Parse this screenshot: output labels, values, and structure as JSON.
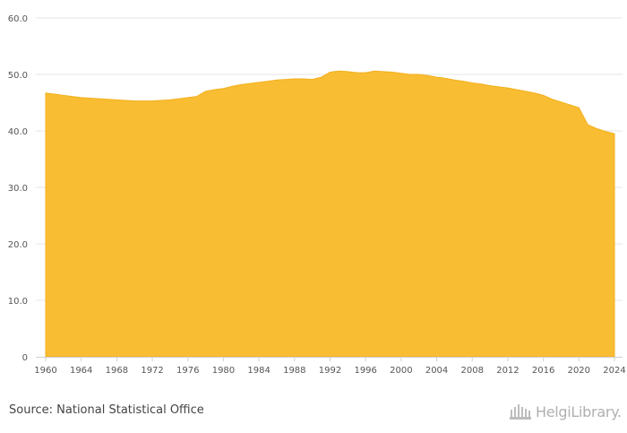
{
  "source_text": "Source: National Statistical Office",
  "brand": {
    "name": "HelgiLibrary.",
    "icon": "library-building-logo"
  },
  "colors": {
    "area": "#f9bd33",
    "area_stroke": "#f2b01c",
    "grid": "#e6e6e6",
    "tick_text": "#555555"
  },
  "chart_data": {
    "type": "area",
    "title": "",
    "xlabel": "",
    "ylabel": "",
    "ylim": [
      0,
      60
    ],
    "y_ticks": [
      "0",
      "10.0",
      "20.0",
      "30.0",
      "40.0",
      "50.0",
      "60.0"
    ],
    "x_ticks": [
      "1960",
      "1964",
      "1968",
      "1972",
      "1976",
      "1980",
      "1984",
      "1988",
      "1992",
      "1996",
      "2000",
      "2004",
      "2008",
      "2012",
      "2016",
      "2020",
      "2024"
    ],
    "grid": true,
    "legend": "none",
    "x": [
      1960,
      1961,
      1962,
      1963,
      1964,
      1965,
      1966,
      1967,
      1968,
      1969,
      1970,
      1971,
      1972,
      1973,
      1974,
      1975,
      1976,
      1977,
      1978,
      1979,
      1980,
      1981,
      1982,
      1983,
      1984,
      1985,
      1986,
      1987,
      1988,
      1989,
      1990,
      1991,
      1992,
      1993,
      1994,
      1995,
      1996,
      1997,
      1998,
      1999,
      2000,
      2001,
      2002,
      2003,
      2004,
      2005,
      2006,
      2007,
      2008,
      2009,
      2010,
      2011,
      2012,
      2013,
      2014,
      2015,
      2016,
      2017,
      2018,
      2019,
      2020,
      2021,
      2022,
      2023,
      2024
    ],
    "values": [
      46.7,
      46.5,
      46.3,
      46.1,
      45.9,
      45.8,
      45.7,
      45.6,
      45.5,
      45.4,
      45.3,
      45.3,
      45.3,
      45.4,
      45.5,
      45.7,
      45.9,
      46.1,
      47.0,
      47.3,
      47.5,
      47.9,
      48.2,
      48.4,
      48.6,
      48.8,
      49.0,
      49.1,
      49.2,
      49.2,
      49.1,
      49.5,
      50.4,
      50.6,
      50.5,
      50.3,
      50.3,
      50.6,
      50.5,
      50.4,
      50.2,
      50.0,
      50.0,
      49.8,
      49.5,
      49.3,
      49.0,
      48.8,
      48.5,
      48.3,
      48.0,
      47.8,
      47.6,
      47.3,
      47.0,
      46.7,
      46.3,
      45.6,
      45.1,
      44.6,
      44.1,
      41.1,
      40.4,
      39.9,
      39.5
    ]
  }
}
